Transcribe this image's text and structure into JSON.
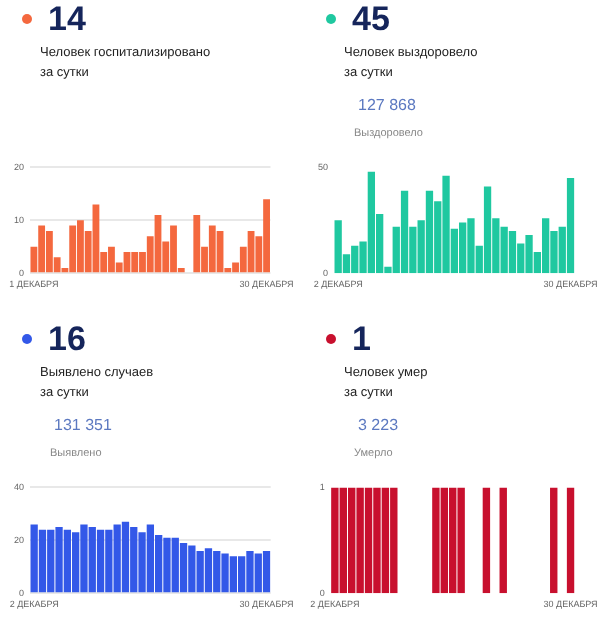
{
  "chart_data": [
    {
      "type": "bar",
      "title": "Человек госпитализировано\nза сутки",
      "annotations": [
        "14"
      ],
      "categories": [
        "1 ДЕКАБРЯ",
        null,
        null,
        null,
        null,
        null,
        null,
        null,
        null,
        null,
        null,
        null,
        null,
        null,
        null,
        null,
        null,
        null,
        null,
        null,
        null,
        null,
        null,
        null,
        null,
        null,
        null,
        null,
        null,
        null,
        "30 ДЕКАБРЯ"
      ],
      "values": [
        5,
        9,
        8,
        3,
        1,
        9,
        10,
        8,
        13,
        4,
        5,
        2,
        4,
        4,
        4,
        7,
        11,
        6,
        9,
        1,
        0,
        11,
        5,
        9,
        8,
        1,
        2,
        5,
        8,
        7,
        14
      ],
      "color": "#f4683e",
      "ylim": [
        0,
        20
      ],
      "yticks": [
        0,
        10,
        20
      ],
      "grid": "y"
    },
    {
      "type": "bar",
      "title": "Человек выздоровело\nза сутки",
      "annotations": [
        "45",
        "127 868",
        "Выздоровело"
      ],
      "categories": [
        "2 ДЕКАБРЯ",
        null,
        null,
        null,
        null,
        null,
        null,
        null,
        null,
        null,
        null,
        null,
        null,
        null,
        null,
        null,
        null,
        null,
        null,
        null,
        null,
        null,
        null,
        null,
        null,
        null,
        null,
        null,
        "30 ДЕКАБРЯ"
      ],
      "values": [
        25,
        9,
        13,
        15,
        48,
        28,
        3,
        22,
        39,
        22,
        25,
        39,
        34,
        46,
        21,
        24,
        26,
        13,
        41,
        26,
        22,
        20,
        14,
        18,
        10,
        26,
        20,
        22,
        45
      ],
      "color": "#1fc8a0",
      "ylim": [
        0,
        50
      ],
      "yticks": [
        0,
        50
      ]
    },
    {
      "type": "bar",
      "title": "Выявлено случаев\nза сутки",
      "annotations": [
        "16",
        "131 351",
        "Выявлено"
      ],
      "categories": [
        "2 ДЕКАБРЯ",
        null,
        null,
        null,
        null,
        null,
        null,
        null,
        null,
        null,
        null,
        null,
        null,
        null,
        null,
        null,
        null,
        null,
        null,
        null,
        null,
        null,
        null,
        null,
        null,
        null,
        null,
        null,
        "30 ДЕКАБРЯ"
      ],
      "values": [
        26,
        24,
        24,
        25,
        24,
        23,
        26,
        25,
        24,
        24,
        26,
        27,
        25,
        23,
        26,
        22,
        21,
        21,
        19,
        18,
        16,
        17,
        16,
        15,
        14,
        14,
        16,
        15,
        16
      ],
      "color": "#3358e8",
      "ylim": [
        0,
        40
      ],
      "yticks": [
        0,
        20,
        40
      ],
      "grid": "y"
    },
    {
      "type": "bar",
      "title": "Человек умер\nза сутки",
      "annotations": [
        "1",
        "3 223",
        "Умерло"
      ],
      "categories": [
        "2 ДЕКАБРЯ",
        null,
        null,
        null,
        null,
        null,
        null,
        null,
        null,
        null,
        null,
        null,
        null,
        null,
        null,
        null,
        null,
        null,
        null,
        null,
        null,
        null,
        null,
        null,
        null,
        null,
        null,
        null,
        "30 ДЕКАБРЯ"
      ],
      "values": [
        1,
        1,
        1,
        1,
        1,
        1,
        1,
        1,
        0,
        0,
        0,
        0,
        1,
        1,
        1,
        1,
        0,
        0,
        1,
        0,
        1,
        0,
        0,
        0,
        0,
        0,
        1,
        0,
        1
      ],
      "color": "#c8102e",
      "ylim": [
        0,
        1
      ],
      "yticks": [
        0,
        1
      ]
    }
  ]
}
